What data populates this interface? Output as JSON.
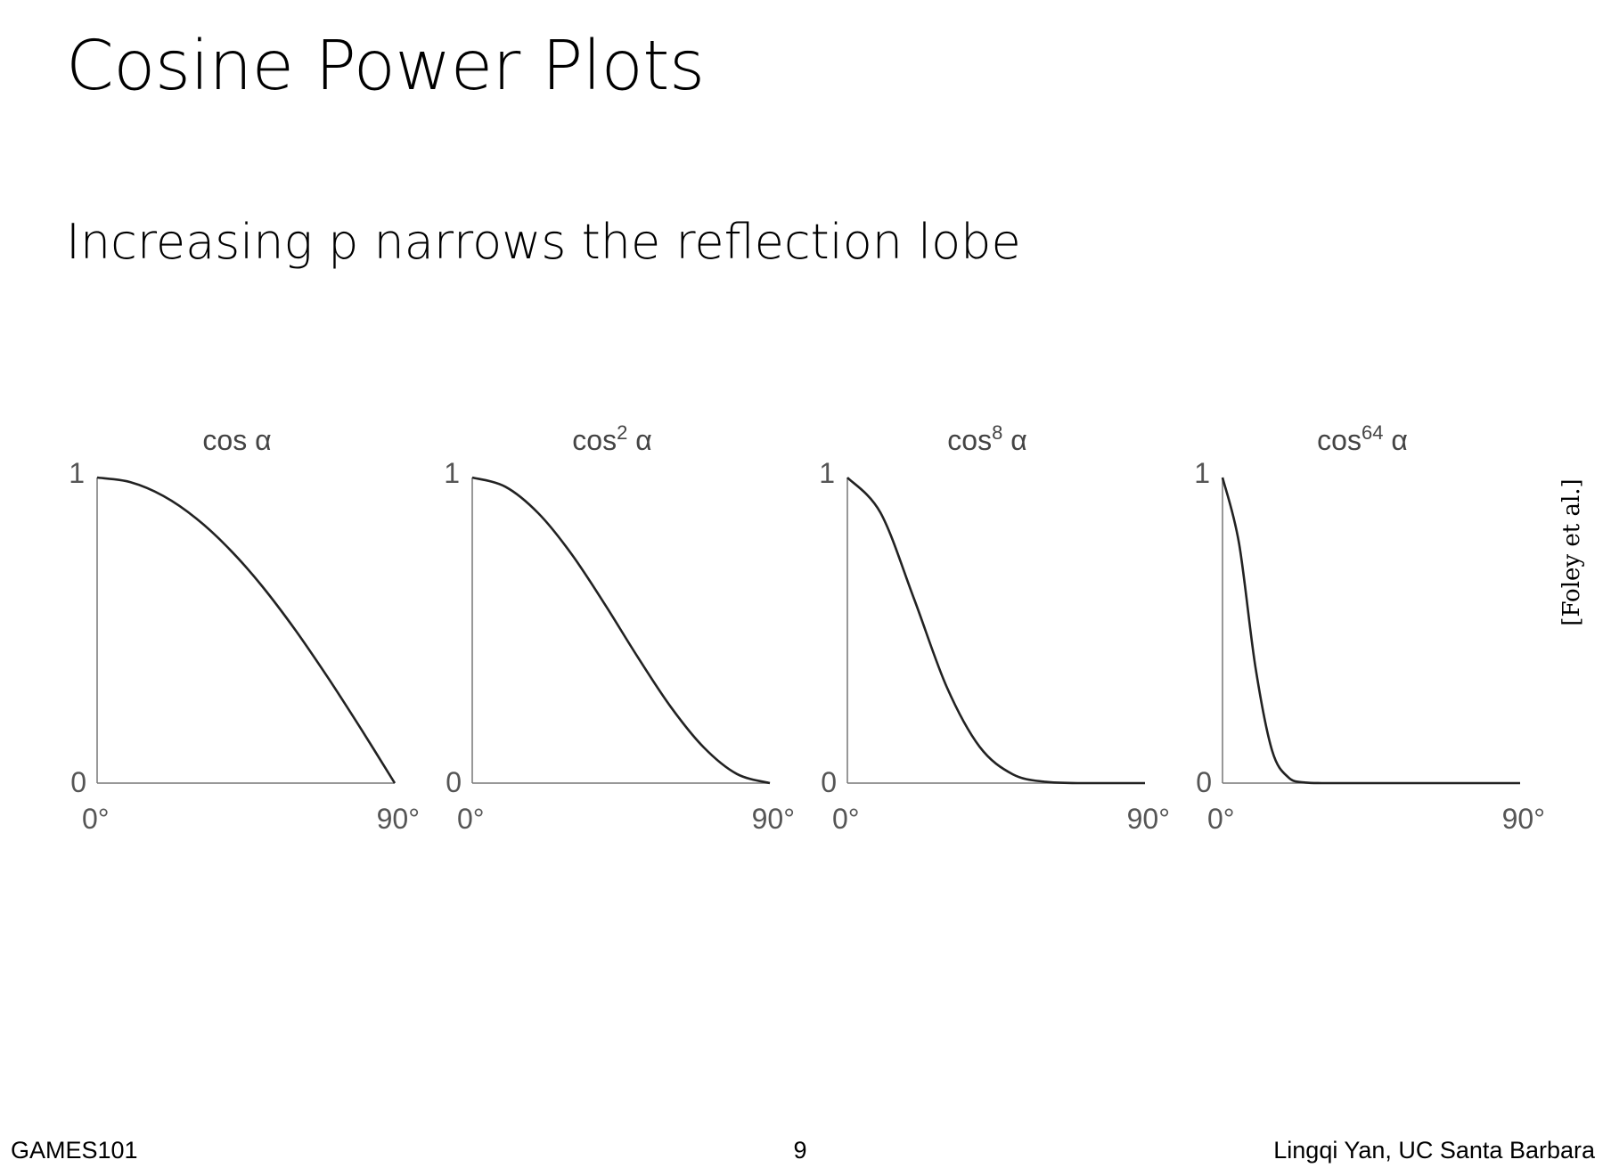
{
  "slide": {
    "title": "Cosine Power Plots",
    "subtitle": "Increasing p narrows the reflection lobe",
    "citation": "[Foley et al.]",
    "footer_left": "GAMES101",
    "page_number": "9",
    "footer_right": "Lingqi Yan, UC Santa Barbara"
  },
  "chart_data": [
    {
      "type": "line",
      "title": "cos α",
      "exponent": 1,
      "x": [
        0,
        10,
        20,
        30,
        40,
        50,
        60,
        70,
        80,
        90
      ],
      "y": [
        1.0,
        0.985,
        0.94,
        0.866,
        0.766,
        0.643,
        0.5,
        0.342,
        0.174,
        0.0
      ],
      "xlim": [
        0,
        90
      ],
      "ylim": [
        0,
        1
      ],
      "xtick_labels": [
        "0°",
        "90°"
      ],
      "ytick_labels": [
        "0",
        "1"
      ],
      "grid": false
    },
    {
      "type": "line",
      "title": "cos2 α",
      "exponent": 2,
      "x": [
        0,
        10,
        20,
        30,
        40,
        50,
        60,
        70,
        80,
        90
      ],
      "y": [
        1.0,
        0.97,
        0.883,
        0.75,
        0.587,
        0.413,
        0.25,
        0.117,
        0.03,
        0.0
      ],
      "xlim": [
        0,
        90
      ],
      "ylim": [
        0,
        1
      ],
      "xtick_labels": [
        "0°",
        "90°"
      ],
      "ytick_labels": [
        "0",
        "1"
      ],
      "grid": false
    },
    {
      "type": "line",
      "title": "cos8 α",
      "exponent": 8,
      "x": [
        0,
        10,
        20,
        30,
        40,
        50,
        60,
        70,
        80,
        90
      ],
      "y": [
        1.0,
        0.885,
        0.608,
        0.316,
        0.119,
        0.029,
        0.004,
        0.0,
        0.0,
        0.0
      ],
      "xlim": [
        0,
        90
      ],
      "ylim": [
        0,
        1
      ],
      "xtick_labels": [
        "0°",
        "90°"
      ],
      "ytick_labels": [
        "0",
        "1"
      ],
      "grid": false
    },
    {
      "type": "line",
      "title": "cos64 α",
      "exponent": 64,
      "x": [
        0,
        5,
        10,
        15,
        20,
        25,
        30,
        40,
        60,
        90
      ],
      "y": [
        1.0,
        0.784,
        0.377,
        0.106,
        0.018,
        0.002,
        0.0,
        0.0,
        0.0,
        0.0
      ],
      "xlim": [
        0,
        90
      ],
      "ylim": [
        0,
        1
      ],
      "xtick_labels": [
        "0°",
        "90°"
      ],
      "ytick_labels": [
        "0",
        "1"
      ],
      "grid": false
    }
  ]
}
